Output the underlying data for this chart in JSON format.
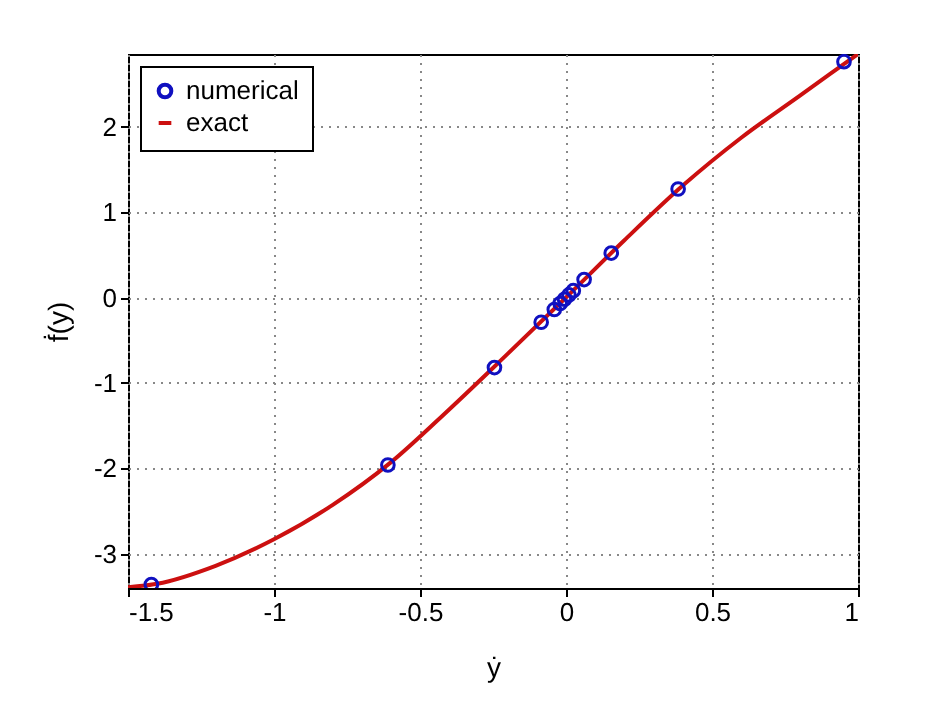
{
  "chart_data": {
    "type": "scatter",
    "xlabel": "ẏ",
    "ylabel": "ḟ(y)",
    "xlim": [
      -1.5,
      1
    ],
    "ylim": [
      -3.4,
      2.85
    ],
    "xticks": [
      -1.5,
      -1,
      -0.5,
      0,
      0.5,
      1
    ],
    "yticks": [
      -3,
      -2,
      -1,
      0,
      1,
      2
    ],
    "grid": true,
    "legend": "top left",
    "series": [
      {
        "name": "numerical",
        "marker": "circle",
        "color": "#1010c0",
        "x": [
          -1.42,
          -0.61,
          -0.245,
          -0.085,
          -0.04,
          -0.02,
          -0.005,
          0.01,
          0.025,
          0.062,
          0.155,
          0.384,
          0.952
        ],
        "values": [
          -3.36,
          -1.96,
          -0.82,
          -0.29,
          -0.14,
          -0.07,
          -0.02,
          0.03,
          0.08,
          0.21,
          0.52,
          1.27,
          2.76
        ]
      },
      {
        "name": "exact",
        "type": "line",
        "marker": "none",
        "color": "#cc1010",
        "x": [
          -1.5,
          -1.4,
          -1.2,
          -1,
          -0.8,
          -0.6,
          -0.4,
          -0.2,
          0,
          0.2,
          0.4,
          0.6,
          0.8,
          1
        ],
        "values": [
          -3.39,
          -3.35,
          -3.14,
          -2.83,
          -2.43,
          -1.93,
          -1.31,
          -0.66,
          0,
          0.67,
          1.31,
          1.87,
          2.36,
          2.85
        ]
      }
    ]
  }
}
